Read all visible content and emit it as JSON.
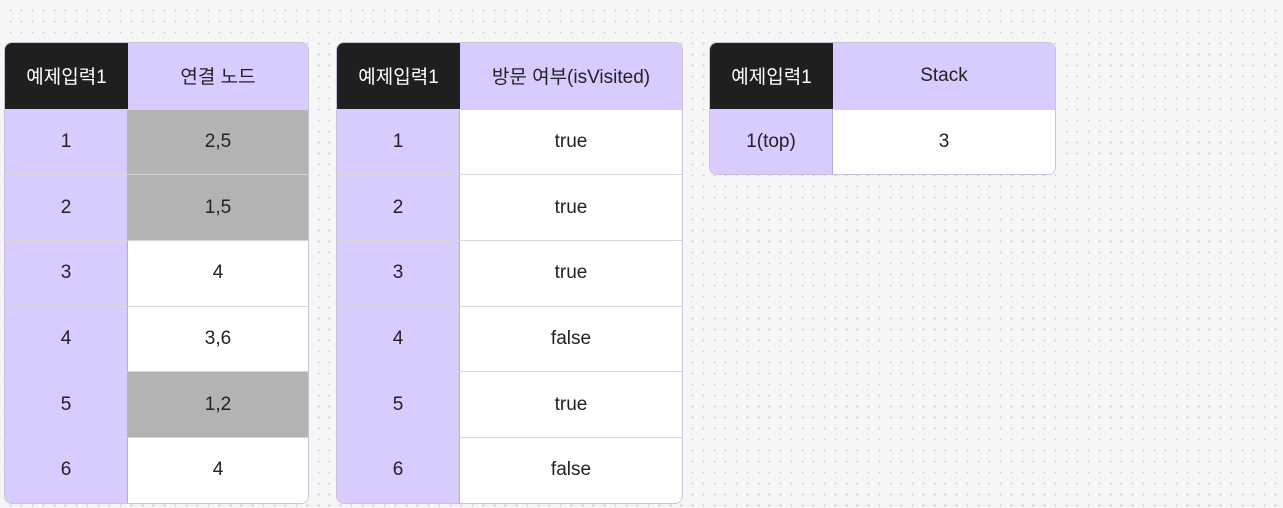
{
  "colors": {
    "header_dark": "#1f1f1f",
    "accent_lavender": "#d9cbff",
    "visited_gray": "#b3b3b3",
    "cell_white": "#ffffff",
    "canvas": "#f6f6f6"
  },
  "adjacency_table": {
    "header_key": "예제입력1",
    "header_value": "연결 노드",
    "rows": [
      {
        "node": "1",
        "neighbors": "2,5",
        "shaded": true
      },
      {
        "node": "2",
        "neighbors": "1,5",
        "shaded": true
      },
      {
        "node": "3",
        "neighbors": "4",
        "shaded": false
      },
      {
        "node": "4",
        "neighbors": "3,6",
        "shaded": false
      },
      {
        "node": "5",
        "neighbors": "1,2",
        "shaded": true
      },
      {
        "node": "6",
        "neighbors": "4",
        "shaded": false
      }
    ]
  },
  "visited_table": {
    "header_key": "예제입력1",
    "header_value": "방문 여부(isVisited)",
    "rows": [
      {
        "node": "1",
        "visited": "true"
      },
      {
        "node": "2",
        "visited": "true"
      },
      {
        "node": "3",
        "visited": "true"
      },
      {
        "node": "4",
        "visited": "false"
      },
      {
        "node": "5",
        "visited": "true"
      },
      {
        "node": "6",
        "visited": "false"
      }
    ]
  },
  "stack_table": {
    "header_key": "예제입력1",
    "header_value": "Stack",
    "rows": [
      {
        "position": "1(top)",
        "value": "3"
      }
    ]
  }
}
